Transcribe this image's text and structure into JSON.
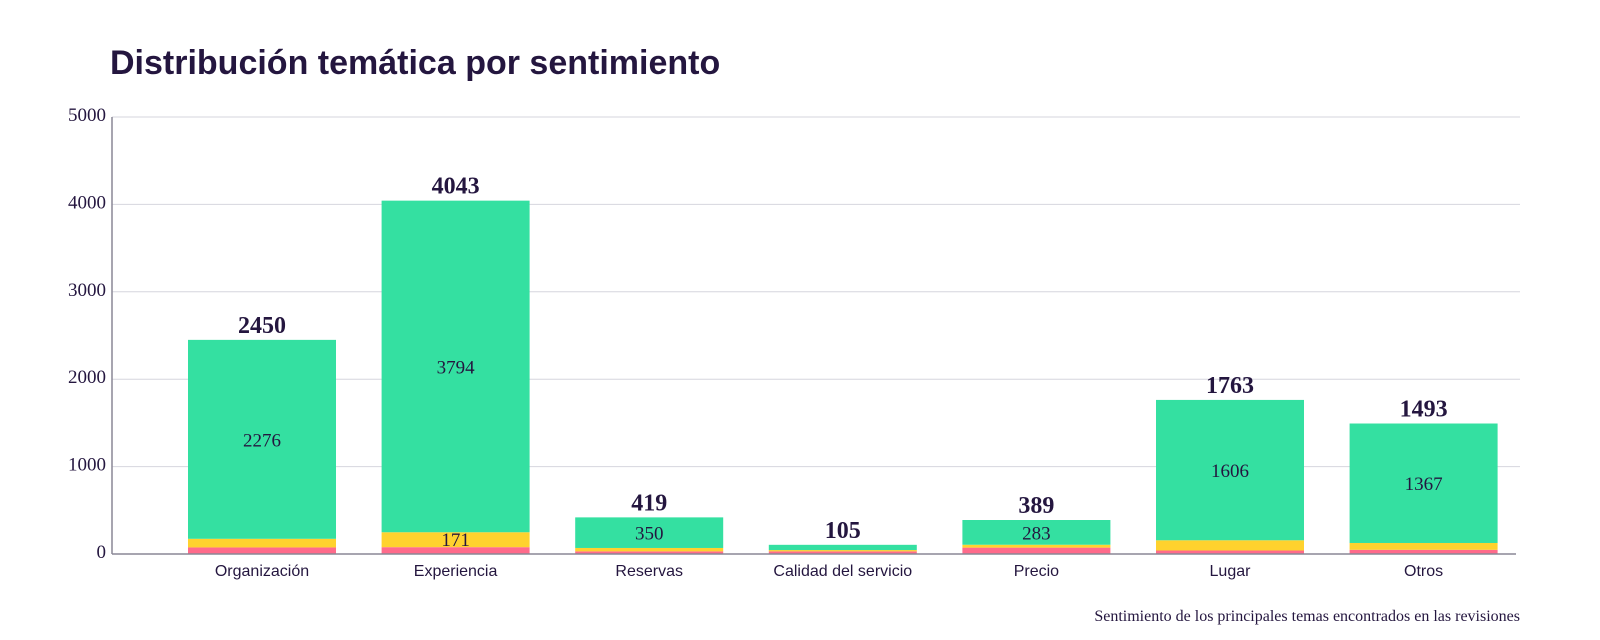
{
  "chart_data": {
    "type": "bar",
    "stacked": true,
    "title": "Distribución temática por sentimiento",
    "caption": "Sentimiento de los principales temas encontrados en las revisiones",
    "categories": [
      "Organización",
      "Experiencia",
      "Reservas",
      "Calidad del servicio",
      "Precio",
      "Lugar",
      "Otros"
    ],
    "totals": [
      2450,
      4043,
      419,
      105,
      389,
      1763,
      1493
    ],
    "series": [
      {
        "color": "#ff6b8b",
        "values": [
          75,
          78,
          30,
          30,
          73,
          40,
          48
        ]
      },
      {
        "color": "#ffd22e",
        "values": [
          99,
          171,
          39,
          15,
          33,
          117,
          78
        ]
      },
      {
        "color": "#34e0a1",
        "values": [
          2276,
          3794,
          350,
          60,
          283,
          1606,
          1367
        ]
      }
    ],
    "data_labels": {
      "Organización": [
        "2276"
      ],
      "Experiencia": [
        "3794",
        "171"
      ],
      "Reservas": [
        "350"
      ],
      "Precio": [
        "283"
      ],
      "Lugar": [
        "1606"
      ],
      "Otros": [
        "1367"
      ]
    },
    "yticks": [
      0,
      1000,
      2000,
      3000,
      4000,
      5000
    ],
    "ylim": [
      0,
      5000
    ],
    "grid": true,
    "legend": "none"
  }
}
